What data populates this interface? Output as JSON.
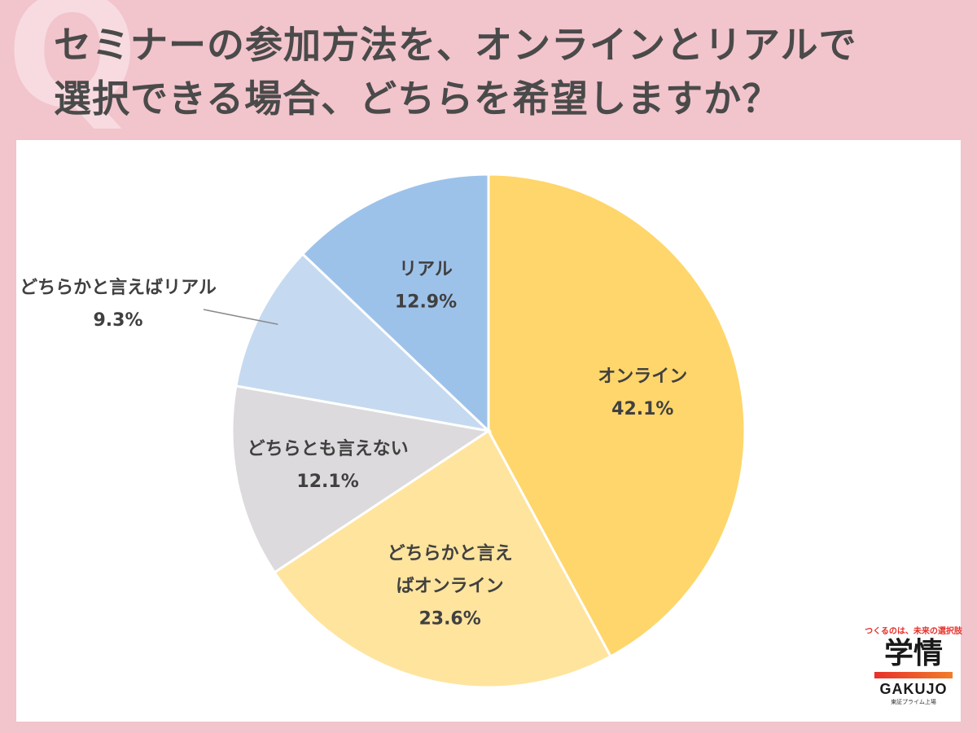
{
  "title_lines": [
    "セミナーの参加方法を、オンラインとリアルで",
    "選択できる場合、どちらを希望しますか？"
  ],
  "chart_data": {
    "type": "pie",
    "title": "セミナーの参加方法を、オンラインとリアルで選択できる場合、どちらを希望しますか？",
    "start": "12 o'clock, clockwise",
    "slices": [
      {
        "label": "オンライン",
        "label_lines": [
          "オンライン"
        ],
        "value": 42.1,
        "value_text": "42.1%",
        "color": "#ffd66b"
      },
      {
        "label": "どちらかと言えばオンライン",
        "label_lines": [
          "どちらかと言え",
          "ばオンライン"
        ],
        "value": 23.6,
        "value_text": "23.6%",
        "color": "#ffe49e"
      },
      {
        "label": "どちらとも言えない",
        "label_lines": [
          "どちらとも言えない"
        ],
        "value": 12.1,
        "value_text": "12.1%",
        "color": "#dcdadc"
      },
      {
        "label": "どちらかと言えばリアル",
        "label_lines": [
          "どちらかと言えばリアル"
        ],
        "value": 9.3,
        "value_text": "9.3%",
        "color": "#c5daf0",
        "label_outside": true
      },
      {
        "label": "リアル",
        "label_lines": [
          "リアル"
        ],
        "value": 12.9,
        "value_text": "12.9%",
        "color": "#9dc2ea"
      }
    ]
  },
  "logo": {
    "tagline": "つくるのは、未来の選択肢",
    "kanji": "学情",
    "name": "GAKUJO",
    "sub": "東証プライム上場"
  }
}
